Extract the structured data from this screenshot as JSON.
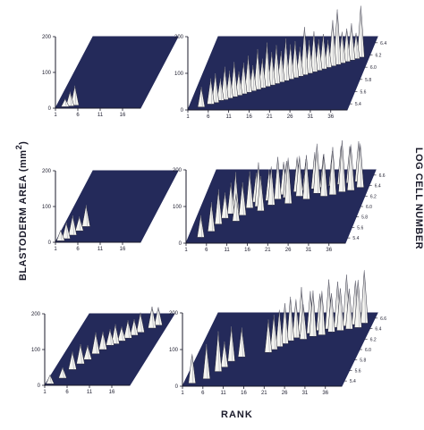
{
  "labels": {
    "y_left_main": "BLASTODERM AREA",
    "y_left_unit": "(mm",
    "y_left_sup": "2",
    "y_left_close": ")",
    "y_right": "LOG CELL NUMBER",
    "x_bottom": "RANK"
  },
  "colors": {
    "floor": "#242a5a",
    "spike_fill": "#f4f4f0",
    "spike_edge": "#2a2a3a",
    "axis": "#1a1a2a"
  },
  "chart_data": [
    {
      "type": "3d-spike",
      "position": "top-left",
      "y_ticks": [
        "0",
        "100",
        "200"
      ],
      "ylim": [
        0,
        200
      ],
      "x_ticks": [
        "1",
        "6",
        "11",
        "16"
      ],
      "xlim": [
        1,
        20
      ],
      "spikes": [
        [
          3,
          22,
          2
        ],
        [
          4,
          40,
          3
        ],
        [
          5,
          55,
          4
        ],
        [
          4,
          30,
          5
        ]
      ]
    },
    {
      "type": "3d-spike",
      "position": "top-right",
      "y_ticks": [
        "0",
        "100",
        "200"
      ],
      "ylim": [
        0,
        200
      ],
      "x_ticks": [
        "1",
        "6",
        "11",
        "16",
        "21",
        "26",
        "31",
        "36"
      ],
      "xlim": [
        1,
        40
      ],
      "z_ticks": [
        "6.4",
        "6.2",
        "6.0",
        "5.8",
        "5.6",
        "5.4"
      ],
      "zlim": [
        5.4,
        6.6
      ],
      "spikes": [
        [
          4,
          55,
          4
        ],
        [
          6,
          70,
          8
        ],
        [
          7,
          80,
          10
        ],
        [
          8,
          60,
          13
        ],
        [
          9,
          90,
          14
        ],
        [
          10,
          75,
          16
        ],
        [
          11,
          95,
          18
        ],
        [
          12,
          65,
          20
        ],
        [
          13,
          85,
          22
        ],
        [
          14,
          100,
          24
        ],
        [
          15,
          70,
          26
        ],
        [
          16,
          110,
          28
        ],
        [
          17,
          80,
          30
        ],
        [
          18,
          120,
          32
        ],
        [
          19,
          90,
          34
        ],
        [
          20,
          105,
          36
        ],
        [
          21,
          85,
          38
        ],
        [
          22,
          115,
          40
        ],
        [
          23,
          95,
          42
        ],
        [
          24,
          100,
          44
        ],
        [
          25,
          80,
          46
        ],
        [
          26,
          130,
          48
        ],
        [
          27,
          90,
          50
        ],
        [
          28,
          110,
          52
        ],
        [
          29,
          85,
          54
        ],
        [
          30,
          95,
          56
        ],
        [
          31,
          75,
          58
        ],
        [
          32,
          125,
          60
        ],
        [
          33,
          150,
          62
        ],
        [
          34,
          85,
          64
        ],
        [
          35,
          90,
          66
        ],
        [
          36,
          100,
          68
        ],
        [
          37,
          70,
          70
        ],
        [
          38,
          140,
          72
        ]
      ]
    },
    {
      "type": "3d-spike",
      "position": "middle-left",
      "y_ticks": [
        "0",
        "100",
        "200"
      ],
      "ylim": [
        0,
        200
      ],
      "x_ticks": [
        "1",
        "6",
        "11",
        "16"
      ],
      "xlim": [
        1,
        20
      ],
      "spikes": [
        [
          2,
          30,
          2
        ],
        [
          3,
          45,
          5
        ],
        [
          4,
          55,
          10
        ],
        [
          5,
          40,
          16
        ],
        [
          6,
          60,
          22
        ]
      ]
    },
    {
      "type": "3d-spike",
      "position": "middle-right",
      "y_ticks": [
        "0",
        "100",
        "200"
      ],
      "ylim": [
        0,
        200
      ],
      "x_ticks": [
        "1",
        "6",
        "11",
        "16",
        "21",
        "26",
        "31",
        "36"
      ],
      "xlim": [
        1,
        40
      ],
      "z_ticks": [
        "6.6",
        "6.4",
        "6.2",
        "6.0",
        "5.8",
        "5.6",
        "5.4"
      ],
      "zlim": [
        5.4,
        6.6
      ],
      "spikes": [
        [
          4,
          60,
          8
        ],
        [
          6,
          80,
          16
        ],
        [
          7,
          95,
          26
        ],
        [
          8,
          70,
          34
        ],
        [
          9,
          85,
          40
        ],
        [
          10,
          110,
          42
        ],
        [
          11,
          75,
          30
        ],
        [
          12,
          90,
          38
        ],
        [
          13,
          100,
          48
        ],
        [
          14,
          80,
          56
        ],
        [
          15,
          120,
          50
        ],
        [
          16,
          95,
          44
        ],
        [
          17,
          85,
          58
        ],
        [
          18,
          105,
          52
        ],
        [
          19,
          115,
          60
        ],
        [
          20,
          90,
          66
        ],
        [
          21,
          100,
          62
        ],
        [
          22,
          125,
          54
        ],
        [
          23,
          95,
          70
        ],
        [
          24,
          110,
          64
        ],
        [
          25,
          85,
          72
        ],
        [
          26,
          120,
          60
        ],
        [
          27,
          100,
          74
        ],
        [
          28,
          135,
          68
        ],
        [
          29,
          90,
          76
        ],
        [
          30,
          115,
          64
        ],
        [
          31,
          95,
          78
        ],
        [
          32,
          130,
          66
        ],
        [
          33,
          105,
          80
        ],
        [
          34,
          140,
          70
        ],
        [
          35,
          100,
          82
        ],
        [
          36,
          125,
          72
        ],
        [
          37,
          110,
          84
        ],
        [
          38,
          120,
          76
        ]
      ]
    },
    {
      "type": "3d-spike",
      "position": "bottom-left",
      "y_ticks": [
        "0",
        "100",
        "200"
      ],
      "ylim": [
        0,
        200
      ],
      "x_ticks": [
        "1",
        "6",
        "11",
        "16"
      ],
      "xlim": [
        1,
        20
      ],
      "spikes": [
        [
          2,
          25,
          2
        ],
        [
          4,
          30,
          10
        ],
        [
          5,
          50,
          22
        ],
        [
          6,
          55,
          30
        ],
        [
          7,
          40,
          36
        ],
        [
          8,
          60,
          44
        ],
        [
          9,
          50,
          50
        ],
        [
          10,
          45,
          56
        ],
        [
          11,
          55,
          58
        ],
        [
          12,
          40,
          62
        ],
        [
          13,
          50,
          66
        ],
        [
          14,
          45,
          70
        ],
        [
          15,
          55,
          74
        ],
        [
          17,
          60,
          80
        ],
        [
          18,
          50,
          84
        ]
      ]
    },
    {
      "type": "3d-spike",
      "position": "bottom-right",
      "y_ticks": [
        "0",
        "100",
        "200"
      ],
      "ylim": [
        0,
        200
      ],
      "x_ticks": [
        "1",
        "6",
        "11",
        "16",
        "21",
        "26",
        "31",
        "36"
      ],
      "xlim": [
        1,
        40
      ],
      "z_ticks": [
        "6.6",
        "6.4",
        "6.2",
        "6.0",
        "5.8",
        "5.6",
        "5.4"
      ],
      "zlim": [
        5.4,
        6.6
      ],
      "spikes": [
        [
          3,
          80,
          4
        ],
        [
          6,
          95,
          10
        ],
        [
          8,
          110,
          20
        ],
        [
          9,
          70,
          26
        ],
        [
          10,
          95,
          34
        ],
        [
          12,
          80,
          40
        ],
        [
          18,
          90,
          46
        ],
        [
          19,
          95,
          50
        ],
        [
          20,
          100,
          54
        ],
        [
          21,
          110,
          58
        ],
        [
          22,
          120,
          62
        ],
        [
          23,
          105,
          66
        ],
        [
          24,
          130,
          70
        ],
        [
          25,
          95,
          64
        ],
        [
          26,
          115,
          72
        ],
        [
          27,
          125,
          68
        ],
        [
          28,
          100,
          76
        ],
        [
          29,
          120,
          70
        ],
        [
          30,
          135,
          78
        ],
        [
          31,
          105,
          74
        ],
        [
          32,
          125,
          80
        ],
        [
          33,
          115,
          76
        ],
        [
          34,
          140,
          82
        ],
        [
          35,
          110,
          78
        ],
        [
          36,
          120,
          84
        ],
        [
          37,
          130,
          80
        ],
        [
          38,
          145,
          86
        ]
      ]
    }
  ]
}
